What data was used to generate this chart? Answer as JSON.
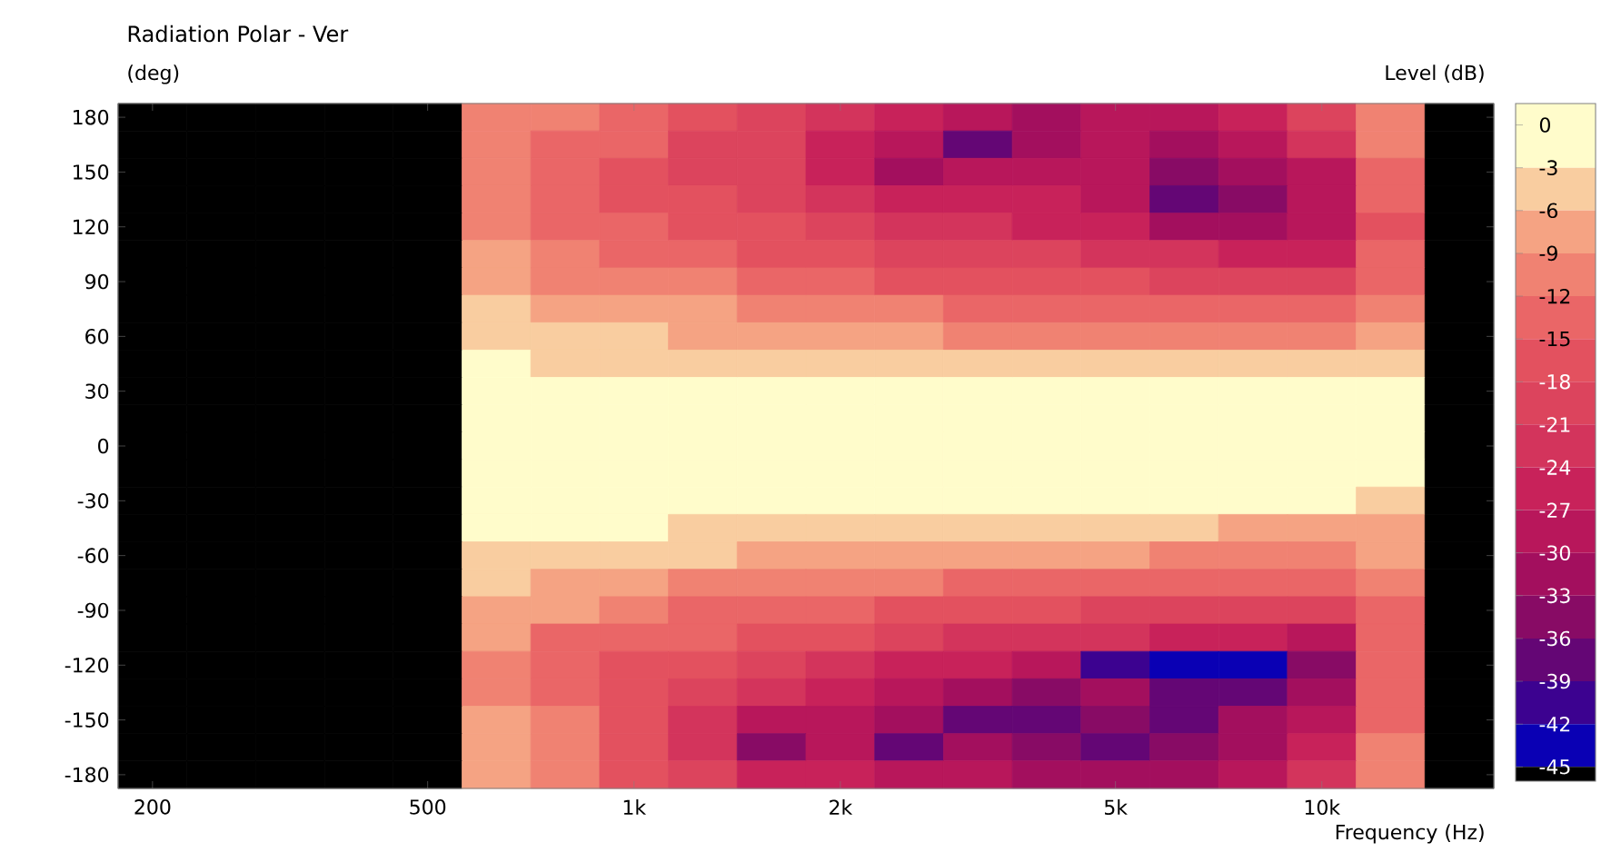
{
  "chart_data": {
    "type": "heatmap",
    "title": "Radiation Polar - Ver",
    "xlabel": "Frequency (Hz)",
    "ylabel": "(deg)",
    "clabel": "Level (dB)",
    "categories": [
      "200",
      null,
      null,
      null,
      "500",
      null,
      null,
      "1k",
      null,
      null,
      "2k",
      null,
      null,
      null,
      "5k",
      null,
      null,
      "10k",
      null,
      null
    ],
    "y_categories": [
      "180",
      null,
      "150",
      null,
      "120",
      null,
      "90",
      null,
      "60",
      null,
      "30",
      null,
      "0",
      null,
      "-30",
      null,
      "-60",
      null,
      "-90",
      null,
      "-120",
      null,
      "-150",
      null,
      "-180"
    ],
    "cells": [
      [
        -46,
        -46,
        -46,
        -46,
        -46,
        -10.5,
        -11,
        -13.5,
        -16,
        -20,
        -23,
        -26,
        -29,
        -31,
        -28,
        -28,
        -25,
        -20,
        -12,
        -46
      ],
      [
        -46,
        -46,
        -46,
        -46,
        -46,
        -10.5,
        -12.5,
        -14,
        -18.5,
        -21,
        -26,
        -30,
        -37,
        -33,
        -29,
        -31,
        -28,
        -24,
        -12,
        -46
      ],
      [
        -46,
        -46,
        -46,
        -46,
        -46,
        -11,
        -13,
        -15.5,
        -19,
        -21,
        -26,
        -33,
        -30,
        -30,
        -30,
        -35,
        -33,
        -28,
        -14,
        -46
      ],
      [
        -46,
        -46,
        -46,
        -46,
        -46,
        -11.5,
        -13,
        -16,
        -17,
        -19,
        -23,
        -27,
        -26,
        -27,
        -29,
        -37,
        -35,
        -30,
        -15,
        -46
      ],
      [
        -46,
        -46,
        -46,
        -46,
        -46,
        -11,
        -12.5,
        -14,
        -16,
        -18,
        -21,
        -23,
        -23,
        -24.5,
        -25,
        -31,
        -32,
        -28,
        -16,
        -46
      ],
      [
        -46,
        -46,
        -46,
        -46,
        -46,
        -8,
        -11,
        -13,
        -13.5,
        -16,
        -18,
        -20,
        -20,
        -20,
        -21.5,
        -23,
        -25,
        -25,
        -15,
        -46
      ],
      [
        -46,
        -46,
        -46,
        -46,
        -46,
        -7,
        -10,
        -11,
        -11,
        -13,
        -14.5,
        -16,
        -16.5,
        -17,
        -17.5,
        -19,
        -19.5,
        -20,
        -14,
        -46
      ],
      [
        -46,
        -46,
        -46,
        -46,
        -46,
        -5,
        -7.5,
        -8,
        -8,
        -10,
        -11,
        -12,
        -13,
        -13,
        -14,
        -14.5,
        -15,
        -15,
        -12,
        -46
      ],
      [
        -46,
        -46,
        -46,
        -46,
        -46,
        -4,
        -4.5,
        -5.5,
        -6.5,
        -7.5,
        -7.5,
        -8,
        -9.5,
        -9.5,
        -9.5,
        -10,
        -10,
        -10,
        -9,
        -46
      ],
      [
        -46,
        -46,
        -46,
        -46,
        -46,
        -2,
        -3.5,
        -4,
        -4.5,
        -4.5,
        -4.5,
        -5,
        -5.5,
        -5.5,
        -5.5,
        -5.5,
        -6,
        -6,
        -6,
        -46
      ],
      [
        -46,
        -46,
        -46,
        -46,
        -46,
        -1,
        -1.5,
        -2,
        -2,
        -2.5,
        -2.5,
        -2.5,
        -2.5,
        -2.5,
        -2.5,
        -2.5,
        -2.5,
        -2.5,
        -2,
        -46
      ],
      [
        -46,
        -46,
        -46,
        -46,
        -46,
        -0.5,
        -0.5,
        -0.5,
        -0.5,
        -0.5,
        -0.5,
        -0.5,
        -0.5,
        -0.5,
        -0.5,
        -0.5,
        -0.5,
        -0.5,
        -1,
        -46
      ],
      [
        -46,
        -46,
        -46,
        -46,
        -46,
        0,
        0,
        0,
        0,
        0,
        0,
        0,
        0,
        0,
        0,
        0,
        0,
        0,
        -0.5,
        -46
      ],
      [
        -46,
        -46,
        -46,
        -46,
        -46,
        -0.5,
        -0.5,
        -0.5,
        -0.5,
        -0.5,
        -0.5,
        -0.5,
        -0.5,
        -0.5,
        -0.5,
        -0.5,
        -0.5,
        -0.5,
        -1,
        -46
      ],
      [
        -46,
        -46,
        -46,
        -46,
        -46,
        -1,
        -1,
        -1,
        -1,
        -2.5,
        -2.5,
        -2.5,
        -2.5,
        -2.5,
        -2.5,
        -2.5,
        -2.5,
        -2.5,
        -3.5,
        -46
      ],
      [
        -46,
        -46,
        -46,
        -46,
        -46,
        -1.5,
        -2,
        -2.5,
        -3.5,
        -4,
        -4,
        -5.5,
        -6,
        -6,
        -6,
        -6,
        -6.5,
        -6.5,
        -6.5,
        -46
      ],
      [
        -46,
        -46,
        -46,
        -46,
        -46,
        -3.5,
        -4,
        -5,
        -5.5,
        -6.5,
        -7,
        -8,
        -9,
        -9,
        -9,
        -9.5,
        -9.5,
        -10,
        -9,
        -46
      ],
      [
        -46,
        -46,
        -46,
        -46,
        -46,
        -5.5,
        -6.5,
        -7.5,
        -9.5,
        -10,
        -10.5,
        -12,
        -13,
        -13,
        -13.5,
        -14,
        -14,
        -14,
        -11,
        -46
      ],
      [
        -46,
        -46,
        -46,
        -46,
        -46,
        -7,
        -9,
        -11,
        -12.5,
        -13.5,
        -14,
        -16,
        -17.5,
        -18,
        -19,
        -19.5,
        -20,
        -20,
        -13,
        -46
      ],
      [
        -46,
        -46,
        -46,
        -46,
        -46,
        -8,
        -12.5,
        -14.5,
        -14.5,
        -17,
        -17.5,
        -21,
        -22.5,
        -23,
        -24,
        -26,
        -27,
        -28,
        -14,
        -46
      ],
      [
        -46,
        -46,
        -46,
        -46,
        -46,
        -9.5,
        -13,
        -16,
        -18,
        -20.5,
        -22,
        -25,
        -27,
        -29,
        -40,
        -43,
        -43,
        -36,
        -15,
        -46
      ],
      [
        -46,
        -46,
        -46,
        -46,
        -46,
        -10,
        -12.5,
        -16.5,
        -19.5,
        -24,
        -25,
        -29,
        -33,
        -34,
        -33,
        -37,
        -37,
        -32,
        -14,
        -46
      ],
      [
        -46,
        -46,
        -46,
        -46,
        -46,
        -8,
        -11,
        -16,
        -22,
        -30,
        -28,
        -32,
        -37,
        -37,
        -36,
        -38,
        -33,
        -30,
        -13,
        -46
      ],
      [
        -46,
        -46,
        -46,
        -46,
        -46,
        -7,
        -11.5,
        -17,
        -23,
        -36,
        -30,
        -37,
        -33,
        -35,
        -37,
        -35,
        -32,
        -27,
        -12,
        -46
      ],
      [
        -46,
        -46,
        -46,
        -46,
        -46,
        -7.5,
        -12,
        -16,
        -21,
        -26,
        -27,
        -30,
        -30,
        -33,
        -33,
        -33,
        -30,
        -24,
        -12,
        -46
      ]
    ],
    "colors": [
      "#FFFCCB",
      "#F9CDA0",
      "#F5A383",
      "#F08272",
      "#EA6667",
      "#E3515F",
      "#DC445D",
      "#D3345C",
      "#C8225A",
      "#B8175B",
      "#A30F5E",
      "#880B65",
      "#640675",
      "#3C0290",
      "#0A00B4",
      "#000000"
    ],
    "clim": [
      -46,
      1.5
    ],
    "cticks": [
      0,
      -3,
      -6,
      -9,
      -12,
      -15,
      -18,
      -21,
      -24,
      -27,
      -30,
      -33,
      -36,
      -39,
      -42,
      -45
    ]
  }
}
